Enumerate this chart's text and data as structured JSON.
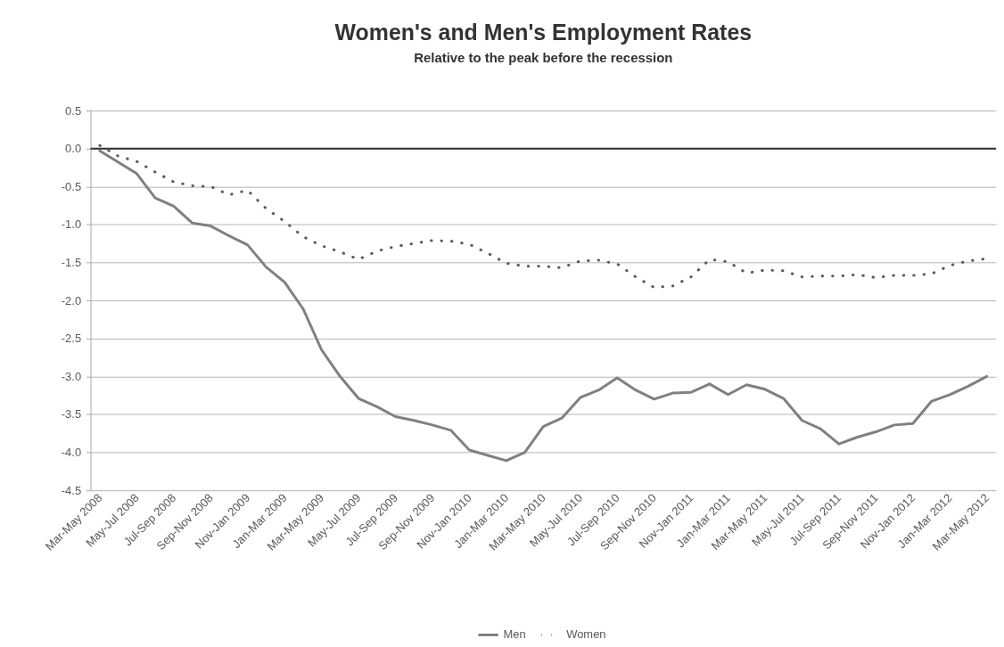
{
  "chart_data": {
    "type": "line",
    "title": "Women's and Men's Employment Rates",
    "subtitle": "Relative to the peak before the recession",
    "categories": [
      "Mar-May 2008",
      null,
      "May-Jul 2008",
      null,
      "Jul-Sep 2008",
      null,
      "Sep-Nov 2008",
      null,
      "Nov-Jan 2009",
      null,
      "Jan-Mar 2009",
      null,
      "Mar-May 2009",
      null,
      "May-Jul 2009",
      null,
      "Jul-Sep 2009",
      null,
      "Sep-Nov 2009",
      null,
      "Nov-Jan 2010",
      null,
      "Jan-Mar 2010",
      null,
      "Mar-May 2010",
      null,
      "May-Jul 2010",
      null,
      "Jul-Sep 2010",
      null,
      "Sep-Nov 2010",
      null,
      "Nov-Jan 2011",
      null,
      "Jan-Mar 2011",
      null,
      "Mar-May 2011",
      null,
      "May-Jul 2011",
      null,
      "Jul-Sep 2011",
      null,
      "Sep-Nov 2011",
      null,
      "Nov-Jan 2012",
      null,
      "Jan-Mar 2012",
      null,
      "Mar-May 2012"
    ],
    "series": [
      {
        "name": "Men",
        "color": "#808080",
        "line_style": "solid",
        "values": [
          -0.03,
          -0.18,
          -0.33,
          -0.65,
          -0.76,
          -0.98,
          -1.02,
          -1.15,
          -1.27,
          -1.56,
          -1.76,
          -2.11,
          -2.65,
          -3.0,
          -3.29,
          -3.4,
          -3.53,
          -3.58,
          -3.64,
          -3.71,
          -3.97,
          -4.04,
          -4.11,
          -4.0,
          -3.66,
          -3.55,
          -3.28,
          -3.18,
          -3.02,
          -3.18,
          -3.3,
          -3.22,
          -3.21,
          -3.1,
          -3.24,
          -3.11,
          -3.17,
          -3.29,
          -3.58,
          -3.69,
          -3.89,
          -3.8,
          -3.73,
          -3.64,
          -3.62,
          -3.33,
          -3.24,
          -3.13,
          -3.0
        ]
      },
      {
        "name": "Women",
        "color": "#5a5a5a",
        "line_style": "dotted",
        "values": [
          0.04,
          -0.1,
          -0.17,
          -0.31,
          -0.44,
          -0.49,
          -0.5,
          -0.61,
          -0.55,
          -0.79,
          -0.96,
          -1.16,
          -1.28,
          -1.36,
          -1.46,
          -1.35,
          -1.29,
          -1.25,
          -1.21,
          -1.22,
          -1.26,
          -1.38,
          -1.51,
          -1.55,
          -1.55,
          -1.57,
          -1.48,
          -1.47,
          -1.52,
          -1.69,
          -1.83,
          -1.81,
          -1.69,
          -1.46,
          -1.49,
          -1.64,
          -1.6,
          -1.61,
          -1.69,
          -1.68,
          -1.68,
          -1.66,
          -1.7,
          -1.67,
          -1.67,
          -1.65,
          -1.54,
          -1.48,
          -1.45
        ]
      }
    ],
    "ylim": [
      -4.5,
      0.5
    ],
    "yticks": [
      0.5,
      {
        "value": 0,
        "label": "0.0"
      },
      -0.5,
      {
        "value": -1,
        "label": "-1.0"
      },
      -1.5,
      {
        "value": -2,
        "label": "-2.0"
      },
      -2.5,
      {
        "value": -3,
        "label": "-3.0"
      },
      -3.5,
      {
        "value": -4,
        "label": "-4.0"
      },
      -4.5
    ],
    "grid": "y",
    "legend": "bottom",
    "ref_lines": [
      {
        "axis": "y",
        "value": 0,
        "color": "#333333"
      }
    ]
  }
}
